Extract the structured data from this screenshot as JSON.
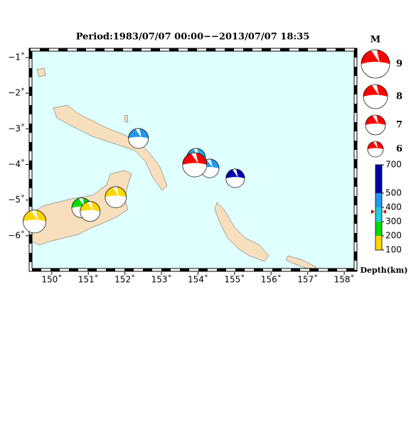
{
  "chart_data": {
    "type": "map",
    "title": "Period:1983/07/07 00:00−−2013/07/07 18:35",
    "sea_color": "#e0ffff",
    "land_color": "#f7dfbd",
    "xlim": [
      149.42,
      158.31
    ],
    "ylim": [
      -6.96,
      -0.78
    ],
    "xticks": [
      {
        "value": 150,
        "label": "150˚"
      },
      {
        "value": 151,
        "label": "151˚"
      },
      {
        "value": 152,
        "label": "152˚"
      },
      {
        "value": 153,
        "label": "153˚"
      },
      {
        "value": 154,
        "label": "154˚"
      },
      {
        "value": 155,
        "label": "155˚"
      },
      {
        "value": 156,
        "label": "156˚"
      },
      {
        "value": 157,
        "label": "157˚"
      },
      {
        "value": 158,
        "label": "158˚"
      }
    ],
    "yticks": [
      {
        "value": -1,
        "label": "−1˚"
      },
      {
        "value": -2,
        "label": "−2˚"
      },
      {
        "value": -3,
        "label": "−3˚"
      },
      {
        "value": -4,
        "label": "−4˚"
      },
      {
        "value": -5,
        "label": "−5˚"
      },
      {
        "value": -6,
        "label": "−6˚"
      }
    ],
    "events": [
      {
        "lon": 149.53,
        "lat": -5.6,
        "mag": 7.7,
        "color": "#ffd700"
      },
      {
        "lon": 150.82,
        "lat": -5.22,
        "mag": 7.0,
        "color": "#00dd00"
      },
      {
        "lon": 151.05,
        "lat": -5.32,
        "mag": 7.0,
        "color": "#ffd700"
      },
      {
        "lon": 151.75,
        "lat": -4.92,
        "mag": 7.3,
        "color": "#ffd700"
      },
      {
        "lon": 152.37,
        "lat": -3.27,
        "mag": 7.0,
        "color": "#2299ee"
      },
      {
        "lon": 153.95,
        "lat": -3.81,
        "mag": 6.7,
        "color": "#22aadd"
      },
      {
        "lon": 154.32,
        "lat": -4.11,
        "mag": 6.7,
        "color": "#2299ee"
      },
      {
        "lon": 155.02,
        "lat": -4.39,
        "mag": 6.7,
        "color": "#0000aa"
      },
      {
        "lon": 153.91,
        "lat": -4.01,
        "mag": 8.0,
        "color": "#ff0000"
      }
    ],
    "magnitude_legend": {
      "title": "M",
      "values": [
        9,
        8,
        7,
        6
      ],
      "color": "#ff0000"
    },
    "depth_scale": {
      "label": "Depth(km)",
      "lim": [
        100,
        700
      ],
      "ticks": [
        100,
        200,
        300,
        400,
        500,
        700
      ],
      "bands": [
        {
          "from": 100,
          "to": 200,
          "color": "#ffd700"
        },
        {
          "from": 200,
          "to": 300,
          "color": "#00dd00"
        },
        {
          "from": 300,
          "to": 400,
          "color": "#22ccdd"
        },
        {
          "from": 400,
          "to": 500,
          "color": "#2299ee"
        },
        {
          "from": 500,
          "to": 700,
          "color": "#0000aa"
        }
      ]
    }
  }
}
